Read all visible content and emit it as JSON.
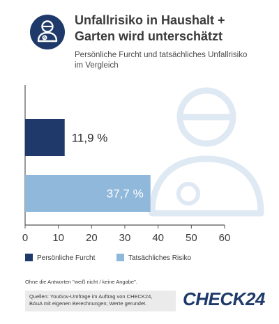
{
  "header": {
    "title_line1": "Unfallrisiko in Haushalt +",
    "title_line2": "Garten wird unterschätzt",
    "subtitle_line1": "Persönliche Furcht und tatsächliches Unfallrisiko",
    "subtitle_line2": "im Vergleich",
    "icon": "injured-person-icon"
  },
  "chart_data": {
    "type": "bar",
    "orientation": "horizontal",
    "series": [
      {
        "name": "Persönliche Furcht",
        "value": 11.9,
        "label": "11,9 %",
        "color": "#1f3a6a"
      },
      {
        "name": "Tatsächliches Risiko",
        "value": 37.7,
        "label": "37,7 %",
        "color": "#8fb8db"
      }
    ],
    "xlim": [
      0,
      60
    ],
    "xticks": [
      "0",
      "10",
      "20",
      "30",
      "40",
      "50",
      "60"
    ],
    "legend_position": "bottom-left",
    "grid": false
  },
  "footer": {
    "note": "Ohne die Antworten \"weiß nicht / keine Angabe\".",
    "sources_line1": "Quellen: YouGov-Umfrage im Auftrag von CHECK24,",
    "sources_line2": "BAuA mit eigenen Berechnungen; Werte gerundet.",
    "brand": "CHECK24"
  },
  "colors": {
    "navy": "#1f3a6a",
    "light_blue": "#8fb8db",
    "watermark": "#dfe9f3"
  }
}
